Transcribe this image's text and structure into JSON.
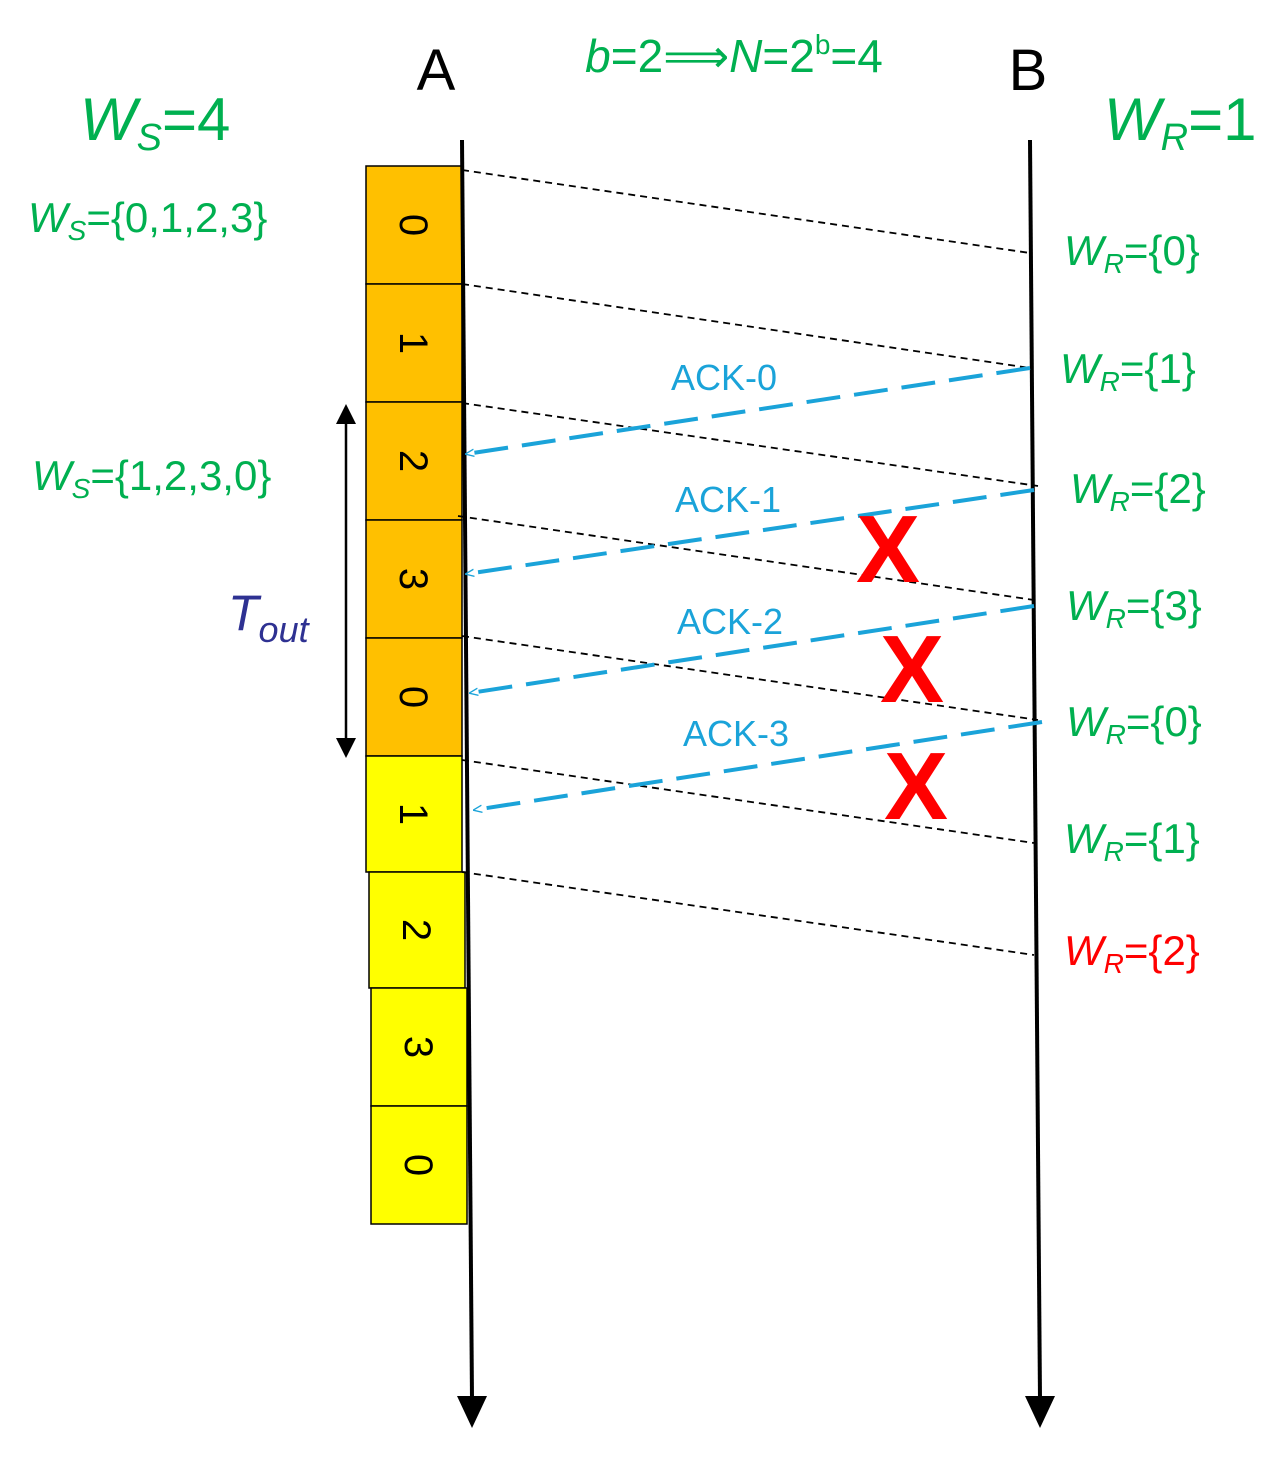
{
  "header": {
    "node_a": "A",
    "node_b": "B",
    "formula": {
      "b": "b",
      "eq1": "=2",
      "implies": "⟹",
      "n": "N",
      "eq2": "=2",
      "sup": "b",
      "eq3": "=4"
    }
  },
  "sender": {
    "window_size": {
      "w": "W",
      "sub": "S",
      "rest": "=4"
    },
    "window_initial": {
      "w": "W",
      "sub": "S",
      "rest": "={0,1,2,3}"
    },
    "window_after": {
      "w": "W",
      "sub": "S",
      "rest": "={1,2,3,0}"
    },
    "timeout": {
      "t": "T",
      "sub": "out"
    }
  },
  "receiver": {
    "window_size": {
      "w": "W",
      "sub": "R",
      "rest": "=1"
    },
    "states": [
      {
        "w": "W",
        "sub": "R",
        "rest": "={0}",
        "color": "#00b050"
      },
      {
        "w": "W",
        "sub": "R",
        "rest": "={1}",
        "color": "#00b050"
      },
      {
        "w": "W",
        "sub": "R",
        "rest": "={2}",
        "color": "#00b050"
      },
      {
        "w": "W",
        "sub": "R",
        "rest": "={3}",
        "color": "#00b050"
      },
      {
        "w": "W",
        "sub": "R",
        "rest": "={0}",
        "color": "#00b050"
      },
      {
        "w": "W",
        "sub": "R",
        "rest": "={1}",
        "color": "#00b050"
      },
      {
        "w": "W",
        "sub": "R",
        "rest": "={2}",
        "color": "#ff0000"
      }
    ]
  },
  "frames": [
    {
      "label": "0",
      "kind": "first-send",
      "color": "#ffc000"
    },
    {
      "label": "1",
      "kind": "first-send",
      "color": "#ffc000"
    },
    {
      "label": "2",
      "kind": "first-send",
      "color": "#ffc000"
    },
    {
      "label": "3",
      "kind": "first-send",
      "color": "#ffc000"
    },
    {
      "label": "0",
      "kind": "first-send",
      "color": "#ffc000"
    },
    {
      "label": "1",
      "kind": "second-send",
      "color": "#ffff00"
    },
    {
      "label": "2",
      "kind": "second-send",
      "color": "#ffff00"
    },
    {
      "label": "3",
      "kind": "second-send",
      "color": "#ffff00"
    },
    {
      "label": "0",
      "kind": "second-send",
      "color": "#ffff00"
    }
  ],
  "acks": [
    {
      "label": "ACK-0",
      "lost": false
    },
    {
      "label": "ACK-1",
      "lost": true
    },
    {
      "label": "ACK-2",
      "lost": true
    },
    {
      "label": "ACK-3",
      "lost": true
    }
  ],
  "lost_marker": "X",
  "colors": {
    "green": "#00b050",
    "ack_blue": "#1aa3d9",
    "timeout_navy": "#2e3192",
    "lost_red": "#ff0000",
    "orange_frame": "#ffc000",
    "yellow_frame": "#ffff00"
  }
}
